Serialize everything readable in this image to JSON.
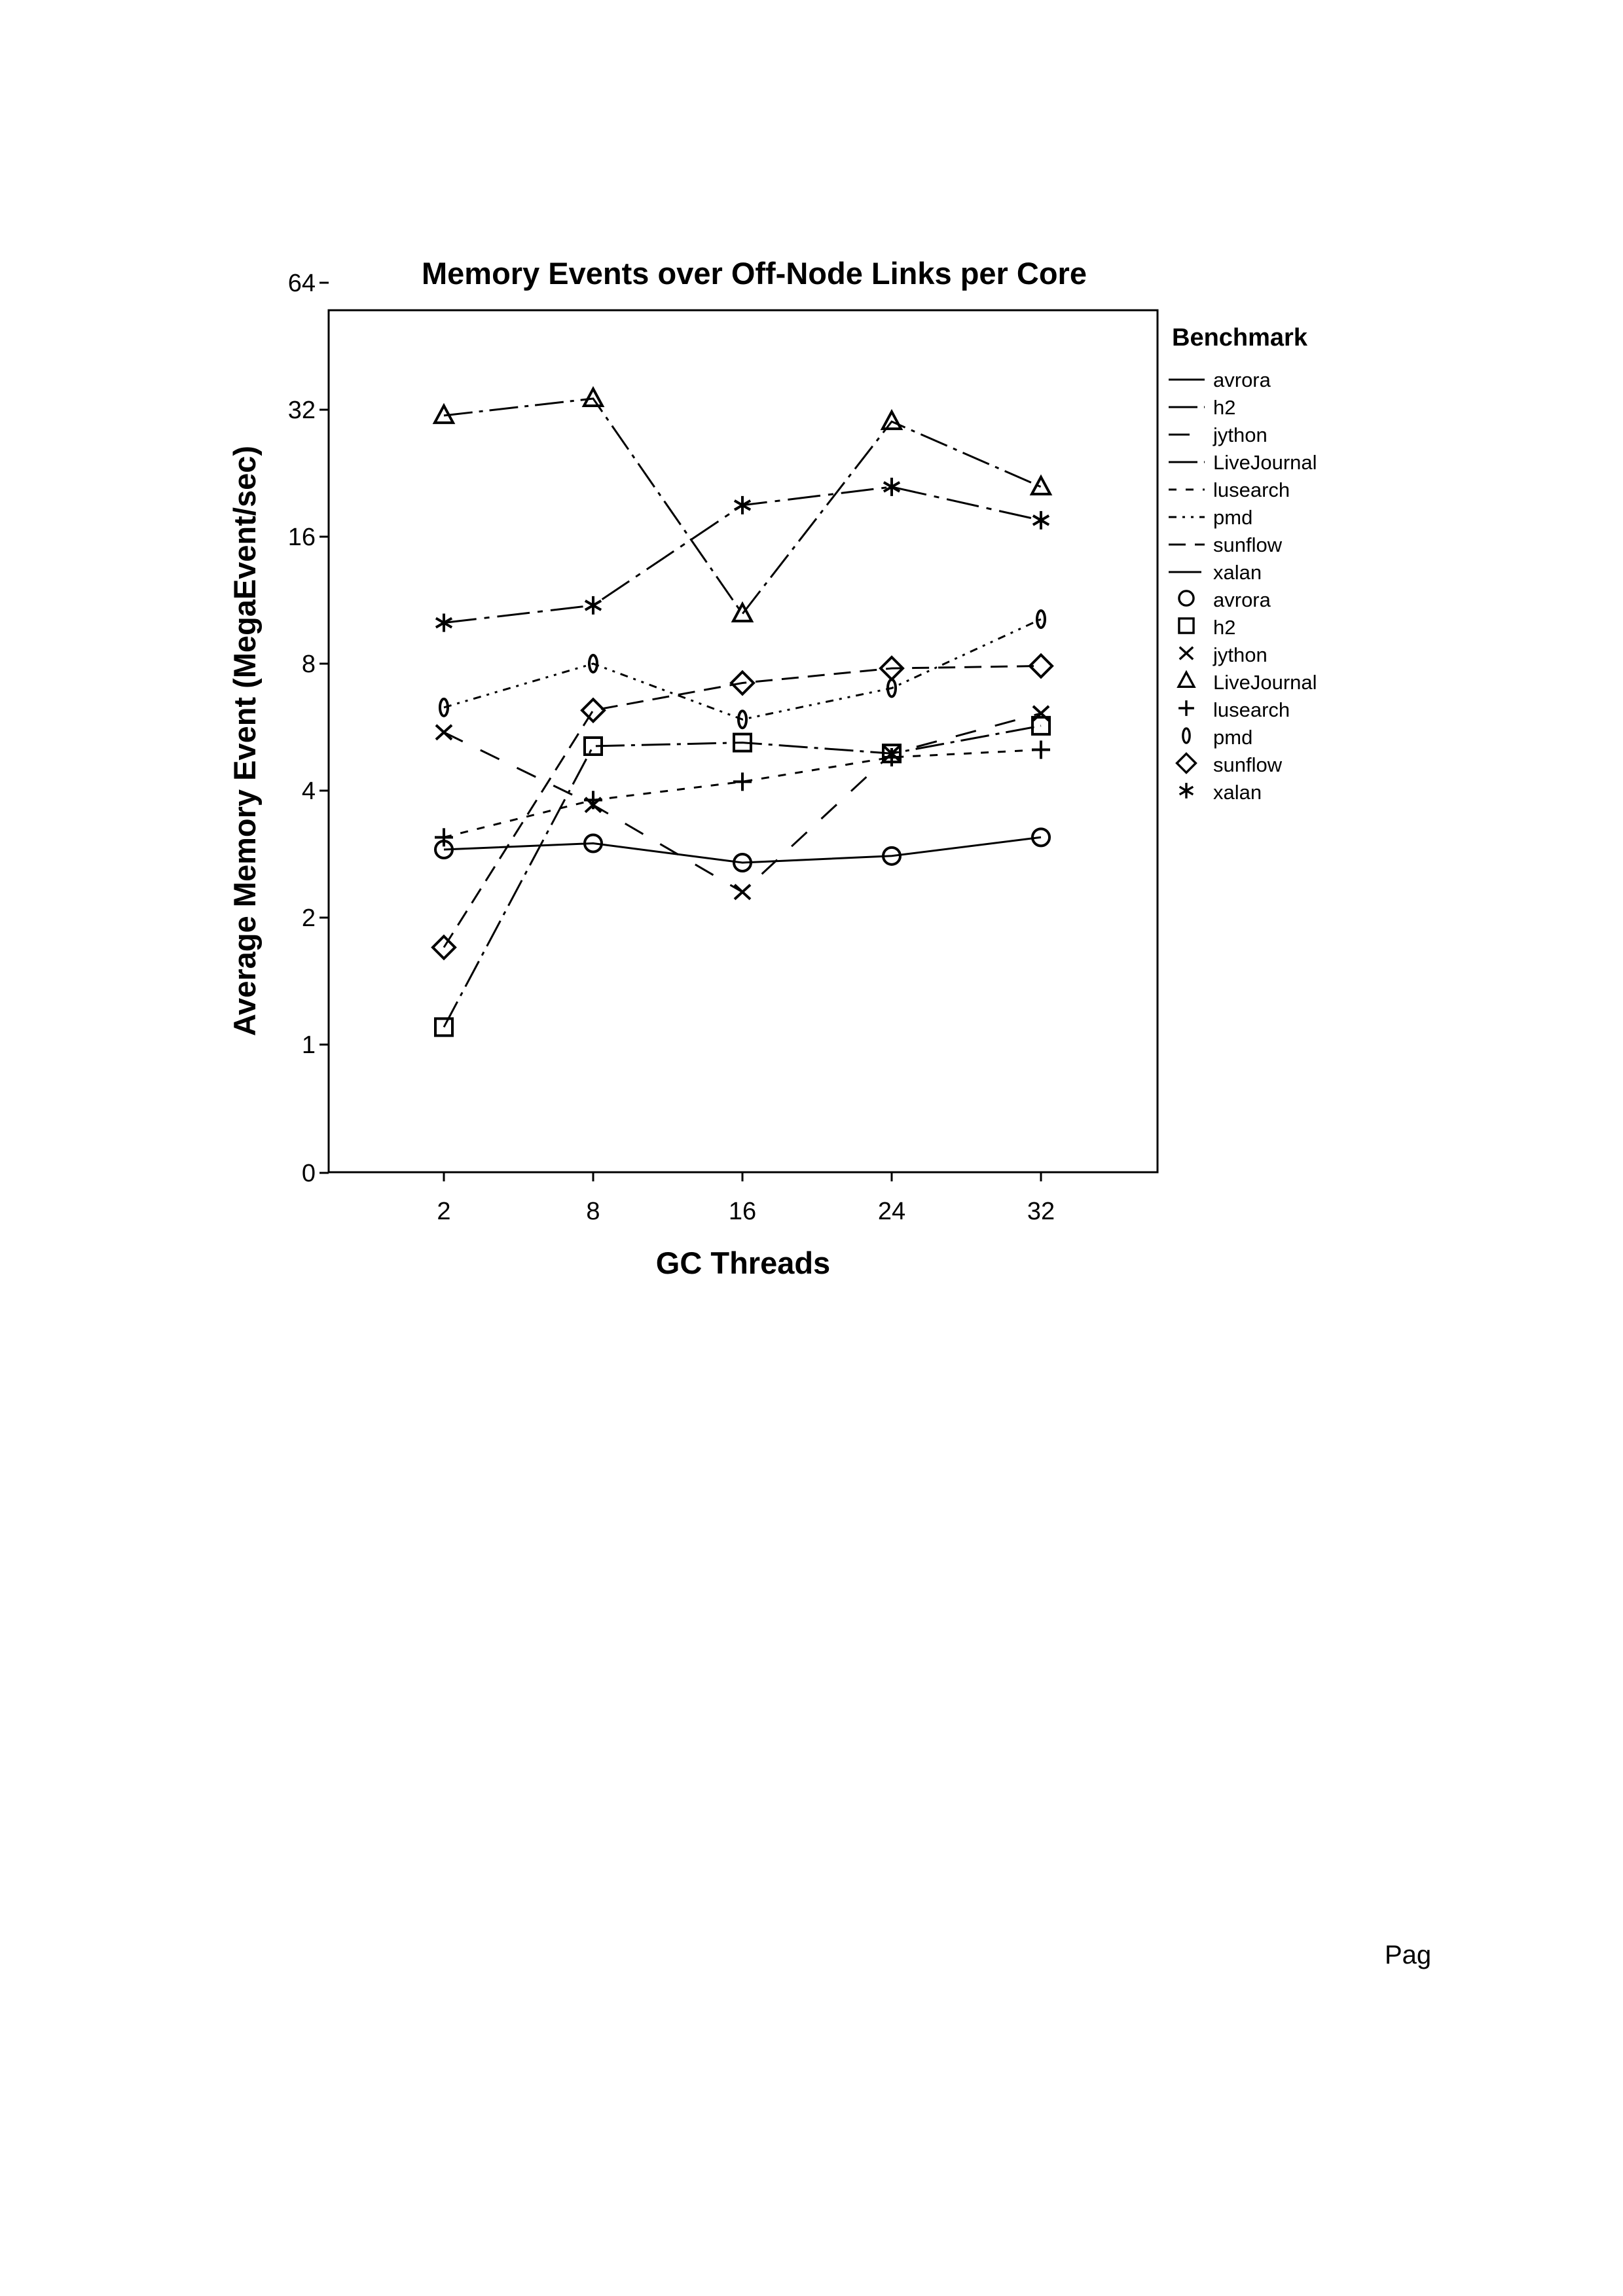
{
  "page_footer": "Pag",
  "chart_data": {
    "type": "line",
    "title": "Memory Events over Off-Node Links per Core",
    "xlabel": "GC Threads",
    "ylabel": "Average Memory Event (MegaEvent/sec)",
    "categories": [
      "2",
      "8",
      "16",
      "24",
      "32"
    ],
    "yscale": "log2",
    "yticks": [
      "0",
      "1",
      "2",
      "4",
      "8",
      "16",
      "32",
      "64"
    ],
    "legend": {
      "title": "Benchmark",
      "placement": "right",
      "line_entries": [
        "avrora",
        "h2",
        "jython",
        "LiveJournal",
        "lusearch",
        "pmd",
        "sunflow",
        "xalan"
      ],
      "marker_entries": [
        "avrora",
        "h2",
        "jython",
        "LiveJournal",
        "lusearch",
        "pmd",
        "sunflow",
        "xalan"
      ]
    },
    "series": [
      {
        "name": "avrora",
        "marker": "circle",
        "dash": "solid",
        "values": [
          2.9,
          3.0,
          2.7,
          2.8,
          3.1
        ]
      },
      {
        "name": "h2",
        "marker": "square",
        "dash": "dash-dot",
        "values": [
          1.1,
          5.1,
          5.2,
          4.9,
          5.7
        ]
      },
      {
        "name": "jython",
        "marker": "x",
        "dash": "long-dash",
        "values": [
          5.5,
          3.7,
          2.3,
          4.9,
          6.1
        ]
      },
      {
        "name": "LiveJournal",
        "marker": "triangle",
        "dash": "dash-dot",
        "values": [
          31,
          34,
          10.5,
          30,
          21
        ]
      },
      {
        "name": "lusearch",
        "marker": "plus",
        "dash": "short-dash",
        "values": [
          3.1,
          3.8,
          4.2,
          4.8,
          5.0
        ]
      },
      {
        "name": "pmd",
        "marker": "ellipse",
        "dash": "dash-dot-dot",
        "values": [
          6.3,
          8.0,
          5.9,
          7.0,
          10.2
        ]
      },
      {
        "name": "sunflow",
        "marker": "diamond",
        "dash": "dashed",
        "values": [
          1.7,
          6.2,
          7.2,
          7.8,
          7.9
        ]
      },
      {
        "name": "xalan",
        "marker": "asterisk",
        "dash": "long-dash-dot",
        "values": [
          10,
          11,
          19,
          21,
          17.5
        ]
      }
    ]
  }
}
